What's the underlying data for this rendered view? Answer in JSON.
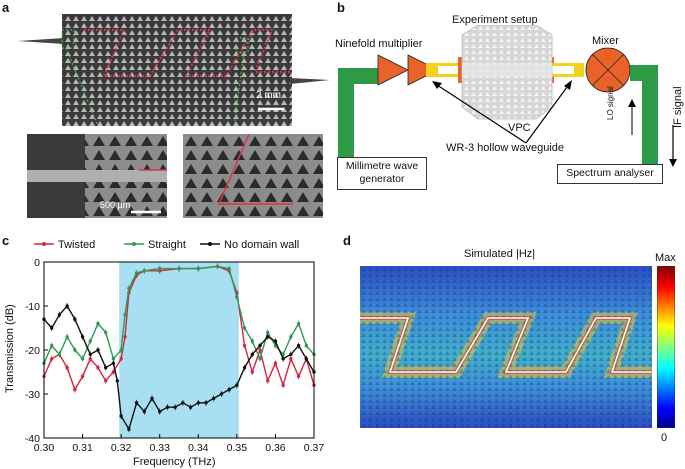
{
  "panels": {
    "a": {
      "label": "a",
      "scale_main": "2 mm",
      "scale_inset": "500 µm"
    },
    "b": {
      "label": "b",
      "experiment_setup": "Experiment setup",
      "multiplier": "Ninefold multiplier",
      "mixer": "Mixer",
      "vpc": "VPC",
      "waveguide": "WR-3 hollow waveguide",
      "generator_line1": "Millimetre wave",
      "generator_line2": "generator",
      "analyser": "Spectrum analyser",
      "lo_signal": "LO signal",
      "if_signal": "IF signal",
      "colors": {
        "multiplier": "#e8622a",
        "waveguide": "#2e9a45",
        "yellow": "#f2d21a"
      }
    },
    "c": {
      "label": "c",
      "legend": [
        "Twisted",
        "Straight",
        "No domain wall"
      ],
      "ylabel": "Transmission (dB)",
      "xlabel": "Frequency (THz)",
      "band_color": "#a9dff2"
    },
    "d": {
      "label": "d",
      "title": "Simulated |Hz|",
      "cbar_max": "Max",
      "cbar_min": "0"
    }
  },
  "chart_data": {
    "type": "line",
    "xlabel": "Frequency (THz)",
    "ylabel": "Transmission (dB)",
    "xlim": [
      0.3,
      0.37
    ],
    "ylim": [
      -40,
      0
    ],
    "xticks": [
      "0.30",
      "0.31",
      "0.32",
      "0.33",
      "0.34",
      "0.35",
      "0.36",
      "0.37"
    ],
    "yticks": [
      "0",
      "-10",
      "-20",
      "-30",
      "-40"
    ],
    "shaded_band": [
      0.3195,
      0.3505
    ],
    "series": [
      {
        "name": "Twisted",
        "color": "#d8243c",
        "x": [
          0.3,
          0.302,
          0.304,
          0.306,
          0.308,
          0.31,
          0.312,
          0.314,
          0.316,
          0.318,
          0.32,
          0.321,
          0.322,
          0.324,
          0.326,
          0.33,
          0.335,
          0.34,
          0.345,
          0.348,
          0.35,
          0.352,
          0.354,
          0.356,
          0.358,
          0.36,
          0.362,
          0.364,
          0.366,
          0.368,
          0.37
        ],
        "y": [
          -26,
          -22,
          -21,
          -24,
          -29,
          -26,
          -22,
          -24,
          -27,
          -25,
          -22,
          -17,
          -7,
          -3,
          -2,
          -2,
          -1.5,
          -1.5,
          -1,
          -2,
          -7,
          -19,
          -25,
          -20,
          -27,
          -23,
          -28,
          -22,
          -26,
          -22,
          -28
        ]
      },
      {
        "name": "Straight",
        "color": "#2e9a56",
        "x": [
          0.3,
          0.302,
          0.304,
          0.306,
          0.308,
          0.31,
          0.312,
          0.314,
          0.316,
          0.318,
          0.32,
          0.321,
          0.322,
          0.324,
          0.326,
          0.33,
          0.335,
          0.34,
          0.345,
          0.348,
          0.35,
          0.352,
          0.354,
          0.356,
          0.358,
          0.36,
          0.362,
          0.364,
          0.366,
          0.368,
          0.37
        ],
        "y": [
          -23,
          -19,
          -21,
          -17,
          -20,
          -22,
          -18,
          -14,
          -16,
          -22,
          -20,
          -12,
          -6,
          -2.5,
          -2,
          -1.5,
          -1.5,
          -1.5,
          -1,
          -1.5,
          -8,
          -15,
          -18,
          -22,
          -16,
          -19,
          -21,
          -17,
          -14,
          -19,
          -21
        ]
      },
      {
        "name": "No domain wall",
        "color": "#111111",
        "x": [
          0.3,
          0.302,
          0.304,
          0.306,
          0.308,
          0.31,
          0.312,
          0.314,
          0.316,
          0.318,
          0.319,
          0.32,
          0.322,
          0.324,
          0.326,
          0.328,
          0.33,
          0.332,
          0.334,
          0.336,
          0.338,
          0.34,
          0.342,
          0.344,
          0.346,
          0.348,
          0.35,
          0.352,
          0.354,
          0.356,
          0.358,
          0.36,
          0.362,
          0.364,
          0.366,
          0.368,
          0.37
        ],
        "y": [
          -13,
          -15,
          -12,
          -10,
          -13,
          -17,
          -21,
          -20,
          -24,
          -23,
          -27,
          -35,
          -38,
          -32,
          -34,
          -31,
          -34,
          -33,
          -33,
          -32,
          -33,
          -32,
          -32,
          -31,
          -30,
          -29,
          -28,
          -24,
          -21,
          -19,
          -17,
          -18,
          -22,
          -21,
          -19,
          -22,
          -25
        ]
      }
    ]
  }
}
